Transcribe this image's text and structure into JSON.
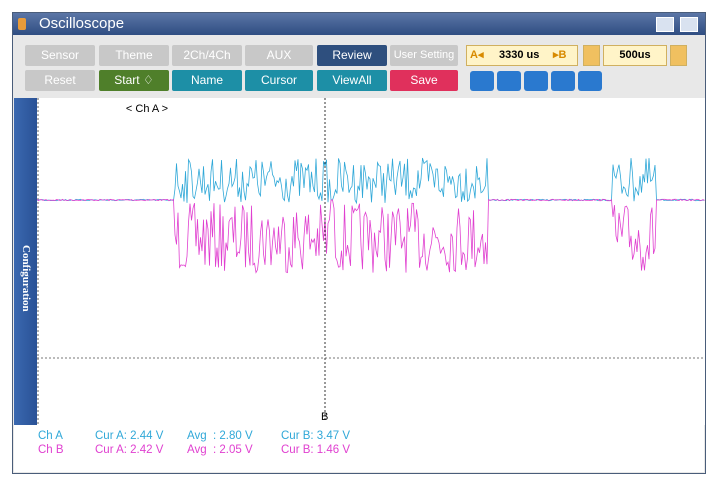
{
  "window": {
    "title": "Oscilloscope"
  },
  "toolbar": {
    "row1": [
      "Sensor",
      "Theme",
      "2Ch/4Ch",
      "AUX",
      "Review",
      "User Setting"
    ],
    "row2": [
      "Reset",
      "Start ♢",
      "Name",
      "Cursor",
      "ViewAll",
      "Save"
    ],
    "cursor_a": "A◂",
    "cursor_span": "3330 us",
    "cursor_b": "▸B",
    "time_div": "500us"
  },
  "plot": {
    "channel_label": "< Ch A >",
    "side_tab": "Configuration",
    "cursor_label": "B"
  },
  "status": [
    {
      "channel": "Ch A",
      "cur_a": "Cur A: 2.44 V",
      "avg": "Avg  : 2.80 V",
      "cur_b": "Cur B: 3.47 V"
    },
    {
      "channel": "Ch B",
      "cur_a": "Cur A: 2.42 V",
      "avg": "Avg  : 2.05 V",
      "cur_b": "Cur B: 1.46 V"
    }
  ]
}
